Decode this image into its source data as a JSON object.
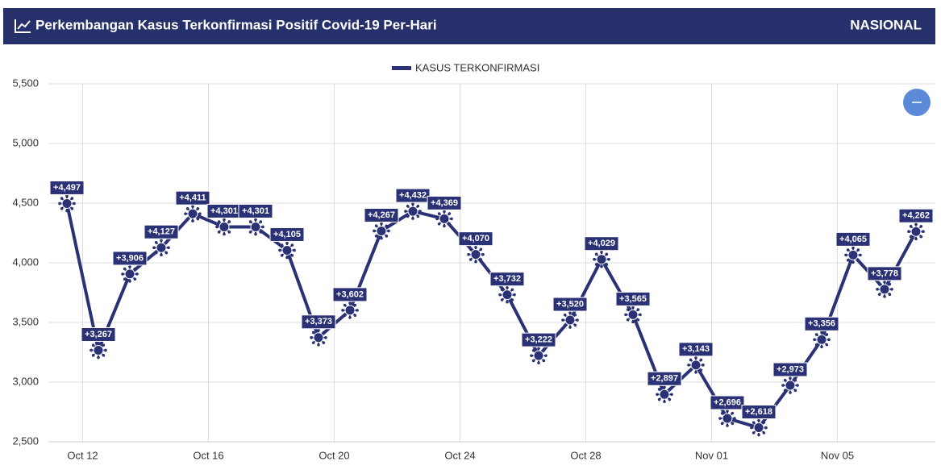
{
  "header": {
    "title": "Perkembangan Kasus Terkonfirmasi Positif Covid-19 Per-Hari",
    "region": "NASIONAL"
  },
  "chart_data": {
    "type": "line",
    "categories": [
      "Oct 12",
      null,
      null,
      null,
      "Oct 16",
      null,
      null,
      null,
      "Oct 20",
      null,
      null,
      null,
      "Oct 24",
      null,
      null,
      null,
      "Oct 28",
      null,
      null,
      null,
      "Nov 01",
      null,
      null,
      null,
      "Nov 05",
      null,
      null,
      null
    ],
    "series": [
      {
        "name": "KASUS TERKONFIRMASI",
        "color": "#2a3275",
        "values": [
          4497,
          3267,
          3906,
          4127,
          4411,
          4301,
          4301,
          4105,
          3373,
          3602,
          4267,
          4432,
          4369,
          4070,
          3732,
          3222,
          3520,
          4029,
          3565,
          2897,
          3143,
          2696,
          2618,
          2973,
          3356,
          4065,
          3778,
          4262
        ],
        "value_labels": [
          "+4,497",
          "+3,267",
          "+3,906",
          "+4,127",
          "+4,411",
          "+4,301",
          "+4,301",
          "+4,105",
          "+3,373",
          "+3,602",
          "+4,267",
          "+4,432",
          "+4,369",
          "+4,070",
          "+3,732",
          "+3,222",
          "+3,520",
          "+4,029",
          "+3,565",
          "+2,897",
          "+3,143",
          "+2,696",
          "+2,618",
          "+2,973",
          "+3,356",
          "+4,065",
          "+3,778",
          "+4,262"
        ]
      }
    ],
    "ylim": [
      2500,
      5500
    ],
    "yticks": [
      {
        "value": 2500,
        "label": "2,500"
      },
      {
        "value": 3000,
        "label": "3,000"
      },
      {
        "value": 3500,
        "label": "3,500"
      },
      {
        "value": 4000,
        "label": "4,000"
      },
      {
        "value": 4500,
        "label": "4,500"
      },
      {
        "value": 5000,
        "label": "5,000"
      },
      {
        "value": 5500,
        "label": "5,500"
      }
    ],
    "grid": true,
    "legend": "top"
  }
}
